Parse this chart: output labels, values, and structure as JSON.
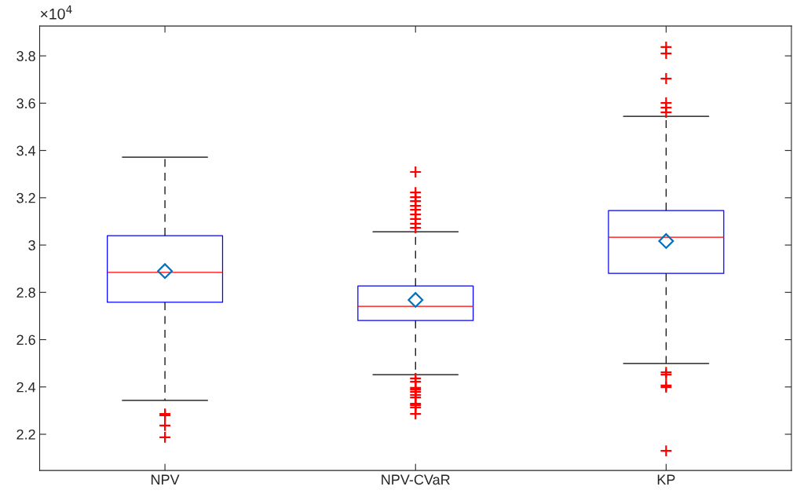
{
  "chart_data": {
    "type": "box",
    "categories": [
      "NPV",
      "NPV-CVaR",
      "KP"
    ],
    "series": [
      {
        "color": "#0000ff",
        "boxes": [
          {
            "low": 2.343,
            "q1": 2.758,
            "median": 2.884,
            "q3": 3.04,
            "high": 3.372,
            "mean": 2.89,
            "outliers": [
              2.286,
              2.28,
              2.237,
              2.187
            ]
          },
          {
            "low": 2.452,
            "q1": 2.681,
            "median": 2.741,
            "q3": 2.827,
            "high": 3.056,
            "mean": 2.768,
            "outliers": [
              3.309,
              3.222,
              3.202,
              3.186,
              3.166,
              3.149,
              3.129,
              3.11,
              3.09,
              3.073,
              2.436,
              2.422,
              2.396,
              2.389,
              2.379,
              2.366,
              2.356,
              2.329,
              2.323,
              2.313,
              2.286
            ]
          },
          {
            "low": 2.499,
            "q1": 2.88,
            "median": 3.033,
            "q3": 3.146,
            "high": 3.544,
            "mean": 3.017,
            "outliers": [
              3.837,
              3.81,
              3.704,
              3.601,
              3.581,
              3.561,
              2.462,
              2.452,
              2.406,
              2.399,
              2.13
            ]
          }
        ]
      }
    ],
    "ylim": [
      2.047,
      3.926
    ],
    "yticks": [
      2.2,
      2.4,
      2.6,
      2.8,
      3,
      3.2,
      3.4,
      3.6,
      3.8
    ],
    "annotations": [
      "×10$^{4}$"
    ],
    "grid": false
  }
}
